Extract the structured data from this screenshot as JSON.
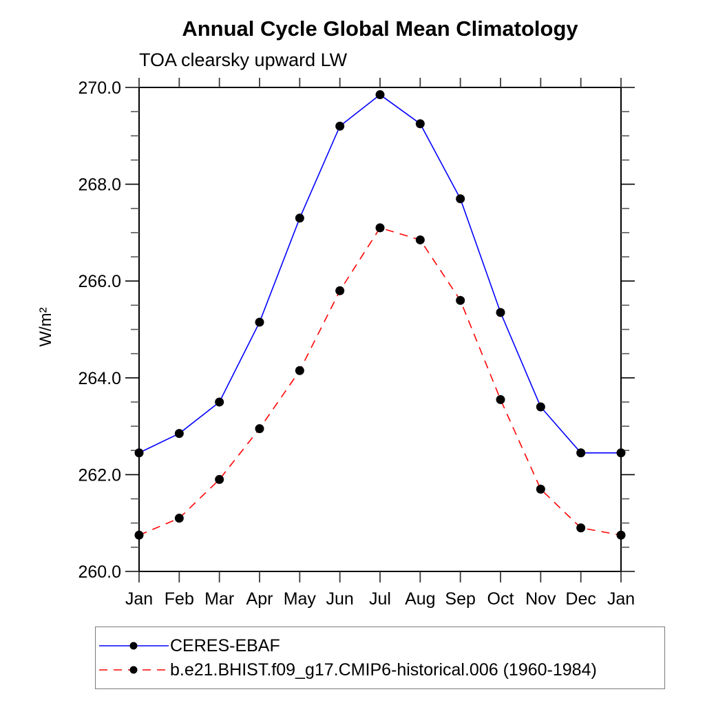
{
  "chart_data": {
    "type": "line",
    "title": "Annual Cycle Global Mean Climatology",
    "subtitle": "TOA clearsky upward LW",
    "ylabel": "W/m²",
    "xlabel": "",
    "ylim": [
      260.0,
      270.0
    ],
    "ytick_major_step": 2.0,
    "ytick_minor_step": 0.5,
    "ytick_labels": [
      "260.0",
      "262.0",
      "264.0",
      "266.0",
      "268.0",
      "270.0"
    ],
    "categories": [
      "Jan",
      "Feb",
      "Mar",
      "Apr",
      "May",
      "Jun",
      "Jul",
      "Aug",
      "Sep",
      "Oct",
      "Nov",
      "Dec",
      "Jan"
    ],
    "grid": false,
    "legend_position": "bottom",
    "series": [
      {
        "name": "CERES-EBAF",
        "color": "#0000ff",
        "line_style": "solid",
        "marker": "filled-circle",
        "marker_color": "#000000",
        "values": [
          262.45,
          262.85,
          263.5,
          265.15,
          267.3,
          269.2,
          269.85,
          269.25,
          267.7,
          265.35,
          263.4,
          262.45,
          262.45
        ]
      },
      {
        "name": "b.e21.BHIST.f09_g17.CMIP6-historical.006 (1960-1984)",
        "color": "#ff0000",
        "line_style": "dashed",
        "marker": "filled-circle",
        "marker_color": "#000000",
        "values": [
          260.75,
          261.1,
          261.9,
          262.95,
          264.15,
          265.8,
          267.1,
          266.85,
          265.6,
          263.55,
          261.7,
          260.9,
          260.75
        ]
      }
    ]
  }
}
